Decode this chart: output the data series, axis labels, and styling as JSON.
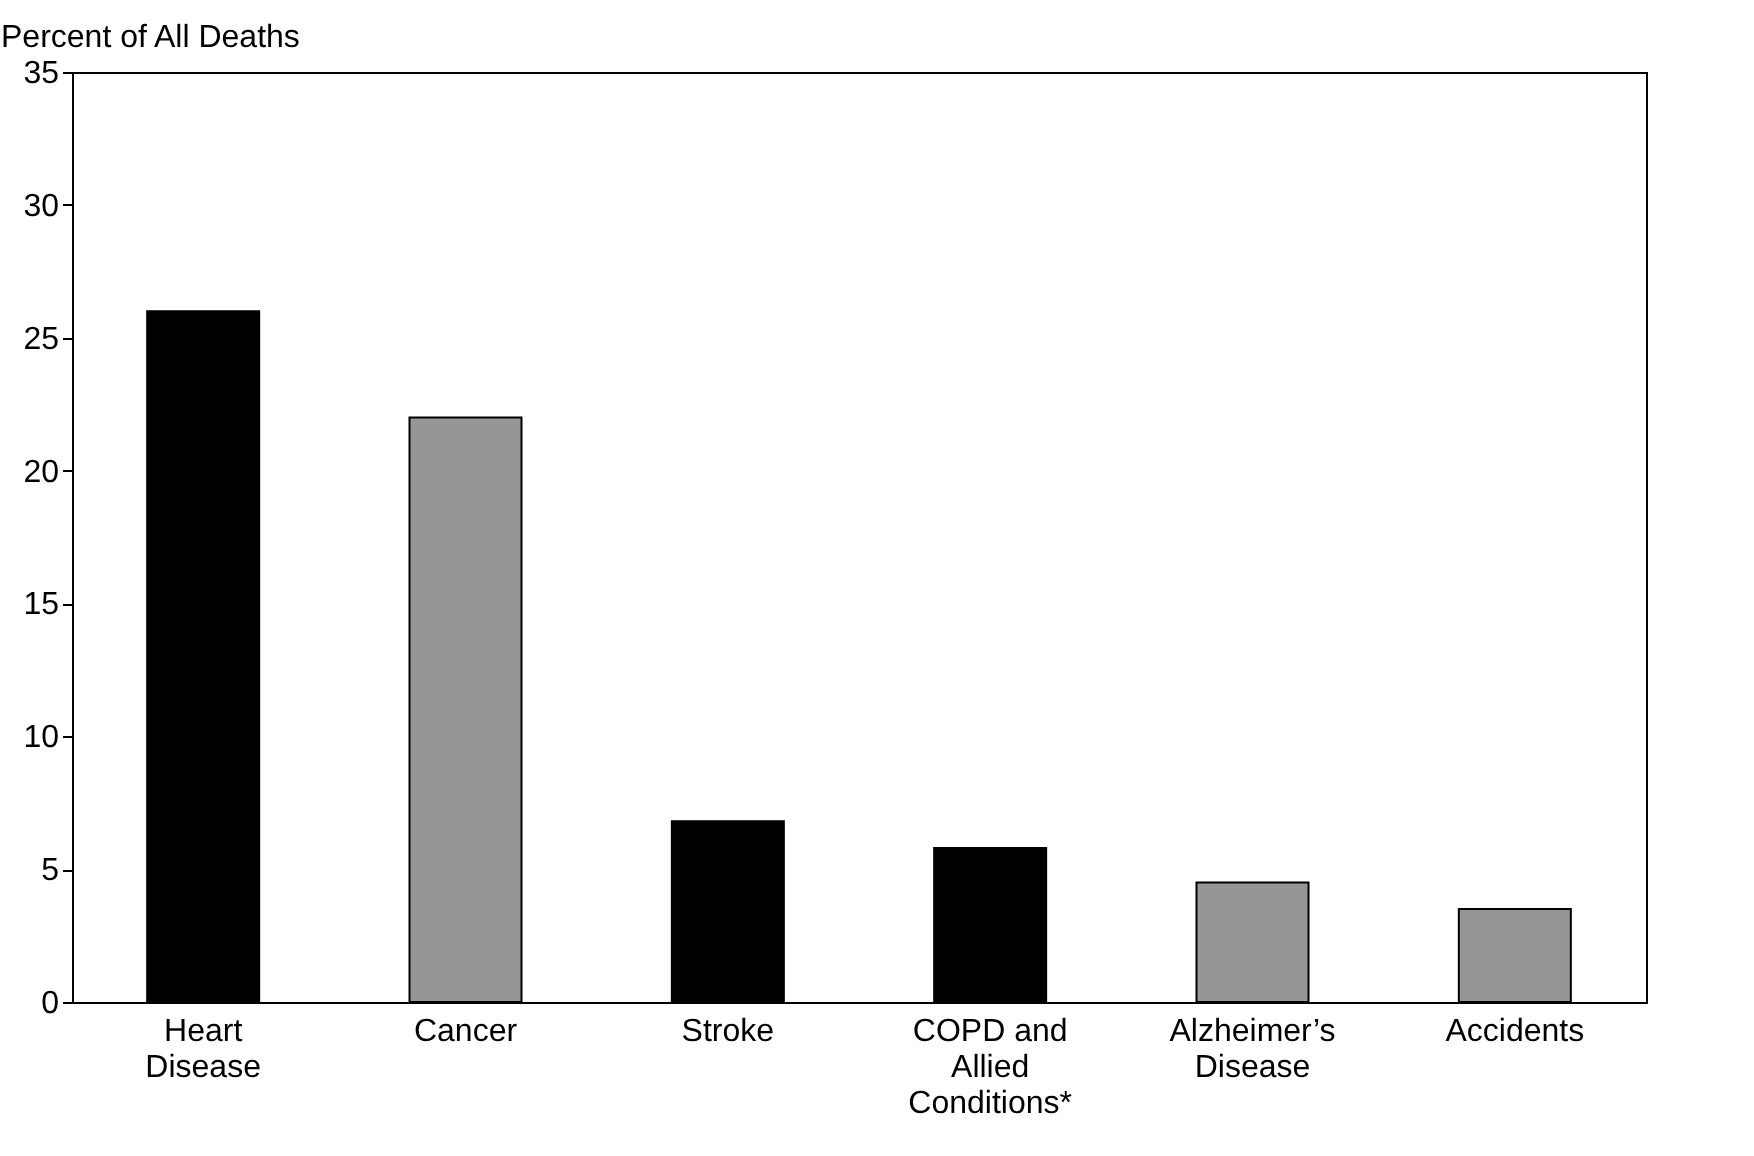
{
  "chart_data": {
    "type": "bar",
    "ylabel": "Percent of All Deaths",
    "categories": [
      "Heart Disease",
      "Cancer",
      "Stroke",
      "COPD and Allied Conditions*",
      "Alzheimer’s Disease",
      "Accidents"
    ],
    "values": [
      26,
      22,
      6.8,
      5.8,
      4.5,
      3.5
    ],
    "colors": [
      "#000000",
      "#969696",
      "#000000",
      "#000000",
      "#969696",
      "#969696"
    ],
    "ylim": [
      0,
      35
    ],
    "yticks": [
      0,
      5,
      10,
      15,
      20,
      25,
      30,
      35
    ],
    "grid": false
  }
}
